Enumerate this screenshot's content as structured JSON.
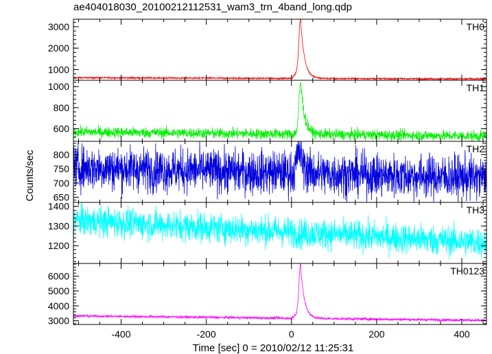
{
  "chart_data": {
    "type": "line",
    "title": "ae404018030_20100212112531_wam3_trn_4band_long.qdp",
    "xlabel": "Time [sec] 0 = 2010/02/12 11:25:31",
    "ylabel": "Counts/sec",
    "xlim": [
      -512,
      458
    ],
    "xticks": [
      "-400",
      "-200",
      "0",
      "200",
      "400"
    ],
    "xtick_values": [
      -400,
      -200,
      0,
      200,
      400
    ],
    "grid": false,
    "panels": [
      {
        "name": "TH0",
        "color": "#ff0000",
        "ylim": [
          500,
          3350
        ],
        "yticks": [
          "1000",
          "2000",
          "3000"
        ],
        "ytick_values": [
          1000,
          2000,
          3000
        ],
        "baseline_start": 620,
        "baseline_end": 560,
        "noise": 20,
        "peak_time": 22,
        "peak_value": 3250,
        "peak_rise": 4,
        "peak_decay": 9,
        "precursor_value": 400,
        "precursor_start": 0,
        "precursor_end": 18
      },
      {
        "name": "TH1",
        "color": "#00ee00",
        "ylim": [
          480,
          1060
        ],
        "yticks": [
          "600",
          "800",
          "1000"
        ],
        "ytick_values": [
          600,
          800,
          1000
        ],
        "baseline_start": 570,
        "baseline_end": 530,
        "noise": 25,
        "peak_time": 22,
        "peak_value": 1050,
        "peak_rise": 4,
        "peak_decay": 9,
        "precursor_value": 30,
        "precursor_start": 5,
        "precursor_end": 18
      },
      {
        "name": "TH2",
        "color": "#0000dd",
        "ylim": [
          632,
          847
        ],
        "yticks": [
          "650",
          "700",
          "750",
          "800"
        ],
        "ytick_values": [
          650,
          700,
          750,
          800
        ],
        "baseline_start": 755,
        "baseline_end": 718,
        "noise": 38,
        "peak_time": 18,
        "peak_value": 840,
        "peak_rise": 5,
        "peak_decay": 10,
        "precursor_value": 0,
        "precursor_start": 0,
        "precursor_end": 0
      },
      {
        "name": "TH3",
        "color": "#00ffff",
        "ylim": [
          1110,
          1420
        ],
        "yticks": [
          "1200",
          "1300",
          "1400"
        ],
        "ytick_values": [
          1200,
          1300,
          1400
        ],
        "baseline_start": 1330,
        "baseline_end": 1215,
        "noise": 38,
        "peak_time": 20,
        "peak_value": 1320,
        "peak_rise": 4,
        "peak_decay": 8,
        "precursor_value": 0,
        "precursor_start": 0,
        "precursor_end": 0
      },
      {
        "name": "TH0123",
        "color": "#ff00ff",
        "ylim": [
          2750,
          6850
        ],
        "yticks": [
          "3000",
          "4000",
          "5000",
          "6000"
        ],
        "ytick_values": [
          3000,
          4000,
          5000,
          6000
        ],
        "baseline_start": 3330,
        "baseline_end": 3030,
        "noise": 45,
        "peak_time": 22,
        "peak_value": 6650,
        "peak_rise": 4,
        "peak_decay": 9,
        "precursor_value": 450,
        "precursor_start": 0,
        "precursor_end": 18
      }
    ]
  }
}
